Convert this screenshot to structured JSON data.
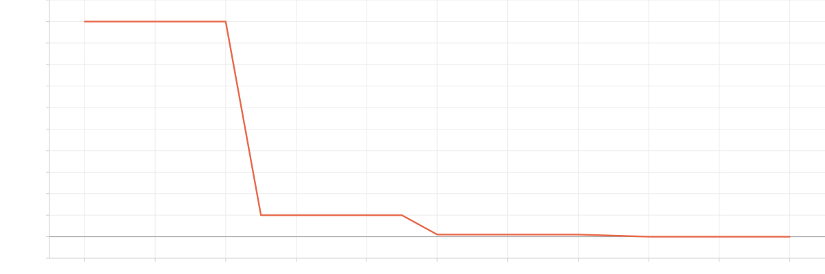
{
  "chart_data": {
    "type": "line",
    "title": "",
    "xlabel": "",
    "ylabel": "",
    "grid": true,
    "xlim": [
      -0.5,
      10.5
    ],
    "ylim": [
      -1,
      11
    ],
    "x_ticks": [
      0,
      1,
      2,
      3,
      4,
      5,
      6,
      7,
      8,
      9,
      10
    ],
    "y_ticks": [
      -1,
      0,
      1,
      2,
      3,
      4,
      5,
      6,
      7,
      8,
      9,
      10,
      11
    ],
    "zero_line": true,
    "series": [
      {
        "color": "#e8694a",
        "x": [
          0,
          2,
          2.5,
          4.5,
          5,
          7,
          8,
          9,
          10
        ],
        "y": [
          10,
          10,
          1,
          1,
          0.1,
          0.1,
          0,
          0,
          0
        ]
      }
    ]
  }
}
